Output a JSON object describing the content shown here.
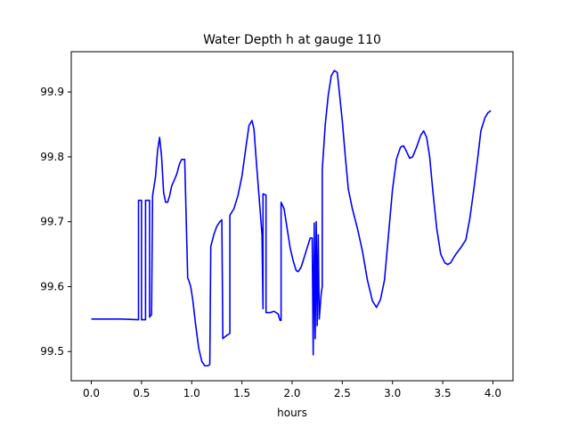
{
  "chart_data": {
    "type": "line",
    "title": "Water Depth h at gauge 110",
    "xlabel": "hours",
    "ylabel": "",
    "xlim": [
      -0.2,
      4.2
    ],
    "ylim": [
      99.455,
      99.962
    ],
    "x_ticks": [
      0.0,
      0.5,
      1.0,
      1.5,
      2.0,
      2.5,
      3.0,
      3.5,
      4.0
    ],
    "x_tick_labels": [
      "0.0",
      "0.5",
      "1.0",
      "1.5",
      "2.0",
      "2.5",
      "3.0",
      "3.5",
      "4.0"
    ],
    "y_ticks": [
      99.5,
      99.6,
      99.7,
      99.8,
      99.9
    ],
    "y_tick_labels": [
      "99.5",
      "99.6",
      "99.7",
      "99.8",
      "99.9"
    ],
    "grid": false,
    "legend": "none",
    "series": [
      {
        "color": "#0000ff",
        "x": [
          0.0,
          0.3,
          0.47,
          0.47,
          0.5,
          0.5,
          0.54,
          0.54,
          0.58,
          0.58,
          0.6,
          0.61,
          0.61,
          0.64,
          0.66,
          0.68,
          0.7,
          0.72,
          0.74,
          0.76,
          0.78,
          0.8,
          0.82,
          0.85,
          0.88,
          0.9,
          0.93,
          0.96,
          0.97,
          0.97,
          0.99,
          1.01,
          1.04,
          1.07,
          1.1,
          1.13,
          1.16,
          1.18,
          1.19,
          1.19,
          1.22,
          1.25,
          1.28,
          1.3,
          1.31,
          1.31,
          1.35,
          1.38,
          1.38,
          1.42,
          1.46,
          1.5,
          1.54,
          1.57,
          1.6,
          1.62,
          1.64,
          1.67,
          1.7,
          1.71,
          1.71,
          1.71,
          1.74,
          1.74,
          1.78,
          1.82,
          1.86,
          1.88,
          1.89,
          1.89,
          1.92,
          1.95,
          1.98,
          2.01,
          2.04,
          2.06,
          2.09,
          2.12,
          2.15,
          2.18,
          2.2,
          2.21,
          2.21,
          2.22,
          2.22,
          2.23,
          2.23,
          2.24,
          2.24,
          2.25,
          2.25,
          2.26,
          2.26,
          2.27,
          2.28,
          2.29,
          2.3,
          2.3,
          2.3,
          2.33,
          2.36,
          2.39,
          2.42,
          2.45,
          2.47,
          2.5,
          2.53,
          2.56,
          2.6,
          2.65,
          2.7,
          2.75,
          2.8,
          2.84,
          2.88,
          2.92,
          2.96,
          3.0,
          3.04,
          3.08,
          3.11,
          3.14,
          3.17,
          3.2,
          3.24,
          3.28,
          3.31,
          3.34,
          3.37,
          3.4,
          3.44,
          3.48,
          3.52,
          3.55,
          3.58,
          3.61,
          3.64,
          3.68,
          3.73,
          3.77,
          3.81,
          3.85,
          3.88,
          3.92,
          3.95,
          3.98
        ],
        "y": [
          99.55,
          99.55,
          99.549,
          99.733,
          99.733,
          99.549,
          99.549,
          99.733,
          99.733,
          99.553,
          99.557,
          99.74,
          99.74,
          99.77,
          99.81,
          99.83,
          99.8,
          99.745,
          99.73,
          99.73,
          99.74,
          99.755,
          99.762,
          99.773,
          99.79,
          99.796,
          99.796,
          99.613,
          99.61,
          99.61,
          99.6,
          99.58,
          99.54,
          99.505,
          99.485,
          99.478,
          99.478,
          99.48,
          99.662,
          99.662,
          99.68,
          99.693,
          99.7,
          99.703,
          99.52,
          99.52,
          99.525,
          99.528,
          99.71,
          99.72,
          99.74,
          99.77,
          99.815,
          99.848,
          99.856,
          99.843,
          99.8,
          99.74,
          99.68,
          99.566,
          99.566,
          99.743,
          99.741,
          99.56,
          99.56,
          99.562,
          99.558,
          99.548,
          99.548,
          99.73,
          99.72,
          99.69,
          99.66,
          99.64,
          99.625,
          99.623,
          99.63,
          99.645,
          99.66,
          99.675,
          99.675,
          99.495,
          99.495,
          99.692,
          99.698,
          99.52,
          99.52,
          99.7,
          99.7,
          99.54,
          99.54,
          99.68,
          99.68,
          99.55,
          99.57,
          99.59,
          99.6,
          99.78,
          99.78,
          99.85,
          99.895,
          99.925,
          99.933,
          99.93,
          99.9,
          99.855,
          99.8,
          99.75,
          99.72,
          99.69,
          99.655,
          99.61,
          99.578,
          99.568,
          99.58,
          99.61,
          99.68,
          99.75,
          99.797,
          99.815,
          99.817,
          99.808,
          99.798,
          99.8,
          99.815,
          99.833,
          99.84,
          99.83,
          99.8,
          99.75,
          99.69,
          99.65,
          99.637,
          99.634,
          99.637,
          99.645,
          99.652,
          99.66,
          99.672,
          99.705,
          99.75,
          99.8,
          99.84,
          99.86,
          99.868,
          99.871
        ]
      }
    ]
  }
}
